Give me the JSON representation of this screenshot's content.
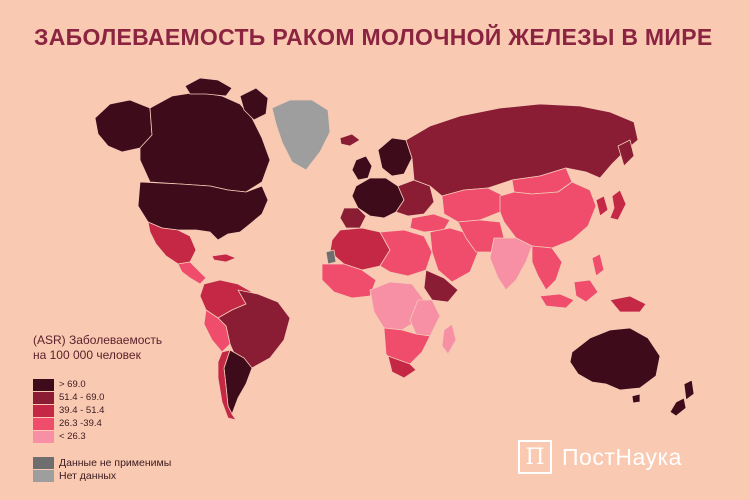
{
  "title": "ЗАБОЛЕВАЕМОСТЬ РАКОМ МОЛОЧНОЙ ЖЕЛЕЗЫ В МИРЕ",
  "legend": {
    "title_line1": "(ASR) Заболеваемость",
    "title_line2": "на 100 000 человек",
    "classes": [
      {
        "label": "> 69.0",
        "color": "#3d0b1a"
      },
      {
        "label": "51.4 - 69.0",
        "color": "#8a1c33"
      },
      {
        "label": "39.4 - 51.4",
        "color": "#c42844"
      },
      {
        "label": "26.3 -39.4",
        "color": "#ef4d6b"
      },
      {
        "label": "< 26.3",
        "color": "#f790a4"
      }
    ],
    "extra": [
      {
        "label": "Данные не применимы",
        "color": "#6e6e6e"
      },
      {
        "label": "Нет данных",
        "color": "#9e9e9e"
      }
    ]
  },
  "logo": {
    "symbol": "П",
    "text": "ПостНаука"
  },
  "colors": {
    "background": "#f9c9b1",
    "title": "#8b2440",
    "border": "#f4c9b7"
  }
}
